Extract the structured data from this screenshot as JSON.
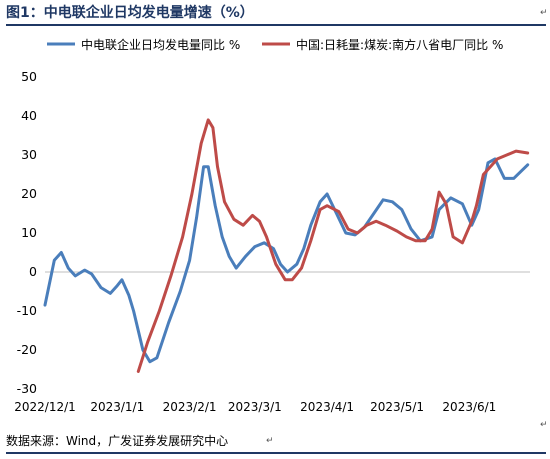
{
  "title": "图1：中电联企业日均发电量增速（%）",
  "source": "数据来源：Wind，广发证券发展研究中心",
  "chart_data": {
    "type": "line",
    "xlabel": "",
    "ylabel": "",
    "ylim": [
      -30,
      50
    ],
    "yticks": [
      -30,
      -20,
      -10,
      0,
      10,
      20,
      30,
      40,
      50
    ],
    "xtick_labels": [
      "2022/12/1",
      "2023/1/1",
      "2023/2/1",
      "2023/3/1",
      "2023/4/1",
      "2023/5/1",
      "2023/6/1"
    ],
    "grid": false,
    "legend_position": "top",
    "series": [
      {
        "name": "中电联企业日均发电量同比 %",
        "color": "#4a7ebb",
        "points": [
          [
            "2022-12-01",
            -8.5
          ],
          [
            "2022-12-05",
            3
          ],
          [
            "2022-12-08",
            5
          ],
          [
            "2022-12-11",
            1
          ],
          [
            "2022-12-14",
            -1
          ],
          [
            "2022-12-18",
            0.5
          ],
          [
            "2022-12-21",
            -0.5
          ],
          [
            "2022-12-25",
            -4
          ],
          [
            "2022-12-29",
            -5.5
          ],
          [
            "2023-01-01",
            -3.5
          ],
          [
            "2023-01-03",
            -2
          ],
          [
            "2023-01-06",
            -6
          ],
          [
            "2023-01-08",
            -10
          ],
          [
            "2023-01-12",
            -20
          ],
          [
            "2023-01-15",
            -23
          ],
          [
            "2023-01-18",
            -22
          ],
          [
            "2023-01-23",
            -13
          ],
          [
            "2023-01-28",
            -5
          ],
          [
            "2023-02-01",
            3
          ],
          [
            "2023-02-04",
            14
          ],
          [
            "2023-02-07",
            27
          ],
          [
            "2023-02-09",
            27
          ],
          [
            "2023-02-12",
            17
          ],
          [
            "2023-02-15",
            9
          ],
          [
            "2023-02-18",
            4
          ],
          [
            "2023-02-21",
            1
          ],
          [
            "2023-02-25",
            4
          ],
          [
            "2023-03-01",
            6.5
          ],
          [
            "2023-03-05",
            7.5
          ],
          [
            "2023-03-09",
            6
          ],
          [
            "2023-03-12",
            2
          ],
          [
            "2023-03-15",
            0
          ],
          [
            "2023-03-19",
            2
          ],
          [
            "2023-03-22",
            6
          ],
          [
            "2023-03-25",
            12
          ],
          [
            "2023-03-29",
            18
          ],
          [
            "2023-04-01",
            20
          ],
          [
            "2023-04-05",
            15
          ],
          [
            "2023-04-09",
            10
          ],
          [
            "2023-04-13",
            9.5
          ],
          [
            "2023-04-17",
            11.5
          ],
          [
            "2023-04-21",
            15
          ],
          [
            "2023-04-25",
            18.5
          ],
          [
            "2023-04-29",
            18
          ],
          [
            "2023-05-03",
            16
          ],
          [
            "2023-05-07",
            11
          ],
          [
            "2023-05-11",
            8
          ],
          [
            "2023-05-16",
            9
          ],
          [
            "2023-05-19",
            16
          ],
          [
            "2023-05-24",
            19
          ],
          [
            "2023-05-29",
            17.5
          ],
          [
            "2023-06-02",
            12
          ],
          [
            "2023-06-05",
            16
          ],
          [
            "2023-06-09",
            28
          ],
          [
            "2023-06-12",
            29
          ],
          [
            "2023-06-16",
            24
          ],
          [
            "2023-06-20",
            24
          ],
          [
            "2023-06-26",
            27.5
          ]
        ]
      },
      {
        "name": "中国:日耗量:煤炭:南方八省电厂同比 %",
        "color": "#be4b48",
        "points": [
          [
            "2023-01-10",
            -25.5
          ],
          [
            "2023-01-14",
            -18
          ],
          [
            "2023-01-19",
            -10
          ],
          [
            "2023-01-24",
            -1
          ],
          [
            "2023-01-29",
            9
          ],
          [
            "2023-02-02",
            20
          ],
          [
            "2023-02-06",
            33
          ],
          [
            "2023-02-09",
            39
          ],
          [
            "2023-02-11",
            37
          ],
          [
            "2023-02-13",
            27
          ],
          [
            "2023-02-16",
            18
          ],
          [
            "2023-02-20",
            13.5
          ],
          [
            "2023-02-24",
            12
          ],
          [
            "2023-02-28",
            14.5
          ],
          [
            "2023-03-03",
            13
          ],
          [
            "2023-03-06",
            9
          ],
          [
            "2023-03-10",
            2
          ],
          [
            "2023-03-14",
            -2
          ],
          [
            "2023-03-17",
            -2
          ],
          [
            "2023-03-21",
            1
          ],
          [
            "2023-03-25",
            8
          ],
          [
            "2023-03-29",
            16
          ],
          [
            "2023-04-01",
            17
          ],
          [
            "2023-04-06",
            15.5
          ],
          [
            "2023-04-10",
            11
          ],
          [
            "2023-04-14",
            10
          ],
          [
            "2023-04-18",
            12
          ],
          [
            "2023-04-22",
            13
          ],
          [
            "2023-04-26",
            12
          ],
          [
            "2023-05-01",
            10.5
          ],
          [
            "2023-05-05",
            9
          ],
          [
            "2023-05-09",
            8
          ],
          [
            "2023-05-13",
            8
          ],
          [
            "2023-05-16",
            11
          ],
          [
            "2023-05-19",
            20.5
          ],
          [
            "2023-05-22",
            17.5
          ],
          [
            "2023-05-25",
            9
          ],
          [
            "2023-05-29",
            7.5
          ],
          [
            "2023-06-02",
            13
          ],
          [
            "2023-06-04",
            17
          ],
          [
            "2023-06-07",
            25
          ],
          [
            "2023-06-10",
            27
          ],
          [
            "2023-06-13",
            29
          ],
          [
            "2023-06-17",
            30
          ],
          [
            "2023-06-21",
            31
          ],
          [
            "2023-06-26",
            30.5
          ]
        ]
      }
    ]
  }
}
